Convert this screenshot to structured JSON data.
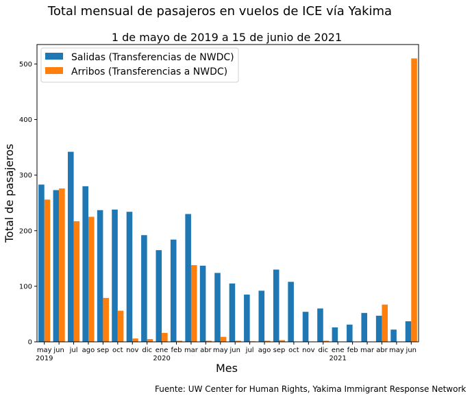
{
  "chart_data": {
    "type": "bar",
    "title": "Total mensual de pasajeros en vuelos de ICE vía Yakima",
    "subtitle": "1 de mayo de 2019 a 15 de junio de 2021",
    "xlabel": "Mes",
    "ylabel": "Total de pasajeros",
    "ylim": [
      0,
      535
    ],
    "yticks": [
      0,
      100,
      200,
      300,
      400,
      500
    ],
    "grid": false,
    "legend_position": "top-left",
    "source": "Fuente: UW Center for Human Rights, Yakima Immigrant Response Network",
    "categories": [
      "may",
      "jun",
      "jul",
      "ago",
      "sep",
      "oct",
      "nov",
      "dic",
      "ene",
      "feb",
      "mar",
      "abr",
      "may",
      "jun",
      "jul",
      "ago",
      "sep",
      "oct",
      "nov",
      "dic",
      "ene",
      "feb",
      "mar",
      "abr",
      "may",
      "jun"
    ],
    "year_labels": [
      {
        "index": 0,
        "label": "2019"
      },
      {
        "index": 8,
        "label": "2020"
      },
      {
        "index": 20,
        "label": "2021"
      }
    ],
    "series": [
      {
        "name": "Salidas (Transferencias de NWDC)",
        "color": "#1f77b4",
        "values": [
          283,
          273,
          342,
          280,
          237,
          238,
          234,
          192,
          165,
          184,
          230,
          137,
          124,
          105,
          85,
          92,
          130,
          108,
          54,
          60,
          26,
          31,
          52,
          47,
          22,
          37
        ]
      },
      {
        "name": "Arribos (Transferencias a NWDC)",
        "color": "#ff7f0e",
        "values": [
          256,
          276,
          217,
          225,
          79,
          56,
          6,
          5,
          16,
          2,
          138,
          2,
          9,
          2,
          1,
          2,
          3,
          0,
          0,
          2,
          0,
          0,
          0,
          67,
          0,
          510
        ]
      }
    ]
  }
}
